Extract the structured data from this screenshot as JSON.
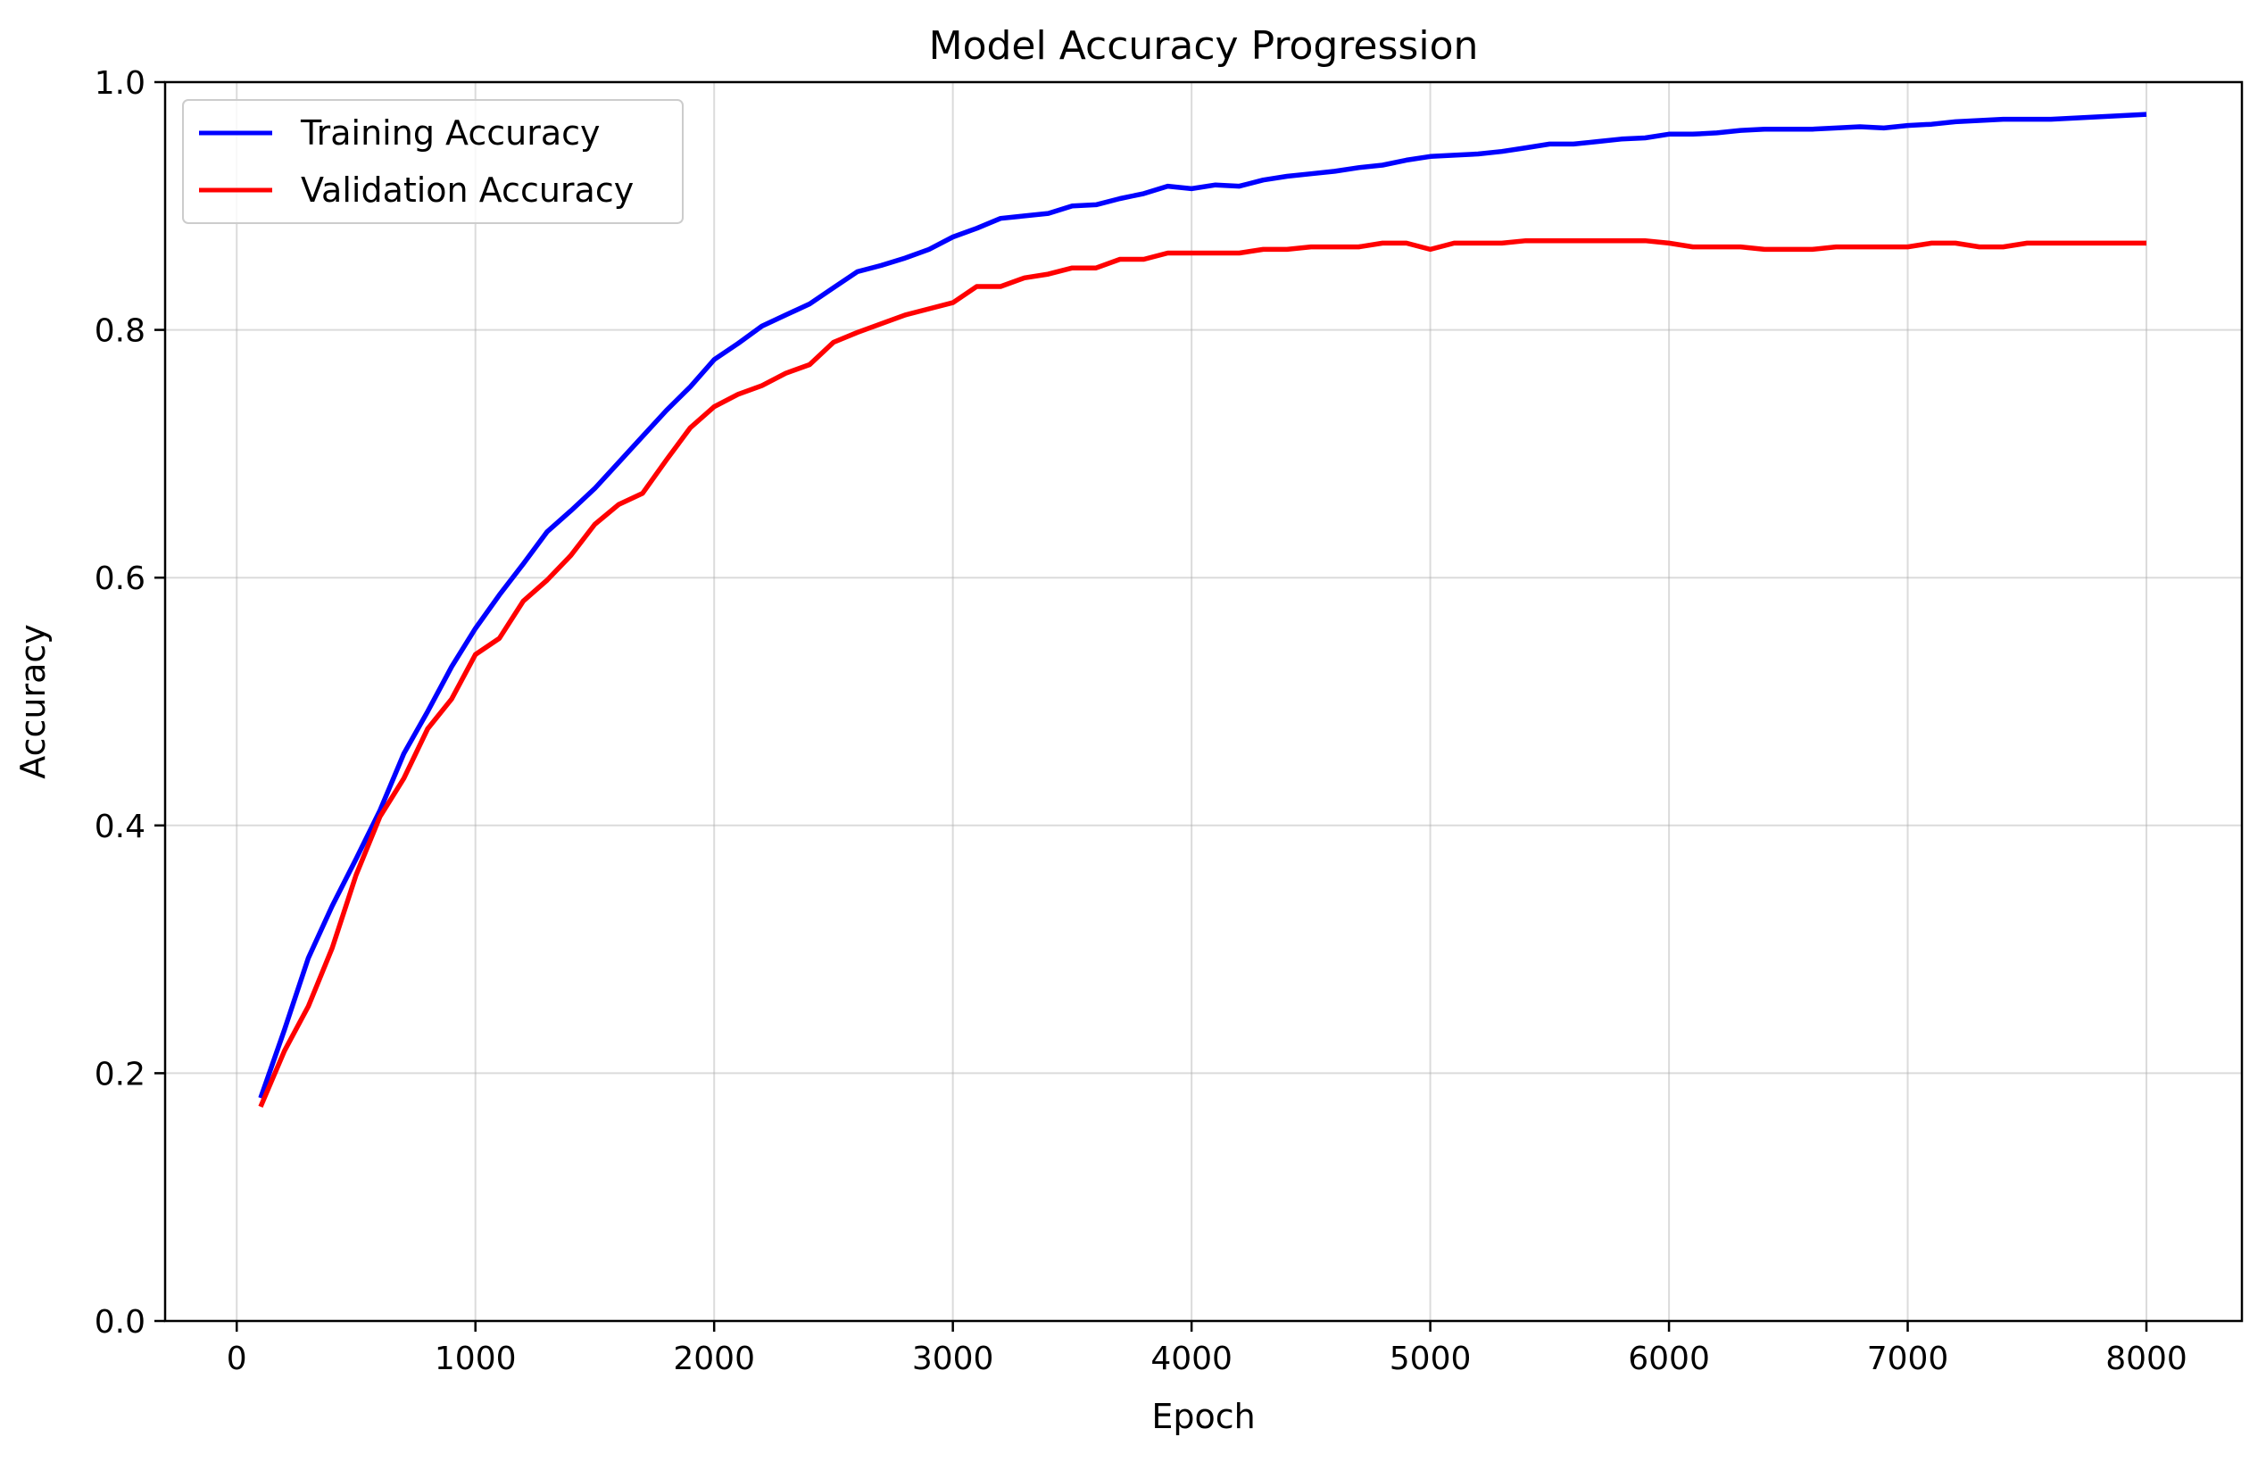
{
  "chart_data": {
    "type": "line",
    "title": "Model Accuracy Progression",
    "xlabel": "Epoch",
    "ylabel": "Accuracy",
    "xlim": [
      -300,
      8400
    ],
    "ylim": [
      0.0,
      1.0
    ],
    "xticks": [
      0,
      1000,
      2000,
      3000,
      4000,
      5000,
      6000,
      7000,
      8000
    ],
    "xtick_labels": [
      "0",
      "1000",
      "2000",
      "3000",
      "4000",
      "5000",
      "6000",
      "7000",
      "8000"
    ],
    "yticks": [
      0.0,
      0.2,
      0.4,
      0.6,
      0.8,
      1.0
    ],
    "ytick_labels": [
      "0.0",
      "0.2",
      "0.4",
      "0.6",
      "0.8",
      "1.0"
    ],
    "grid": true,
    "legend_position": "top-left",
    "x": [
      100,
      200,
      300,
      400,
      500,
      600,
      700,
      800,
      900,
      1000,
      1100,
      1200,
      1300,
      1400,
      1500,
      1600,
      1700,
      1800,
      1900,
      2000,
      2100,
      2200,
      2300,
      2400,
      2500,
      2600,
      2700,
      2800,
      2900,
      3000,
      3100,
      3200,
      3300,
      3400,
      3500,
      3600,
      3700,
      3800,
      3900,
      4000,
      4100,
      4200,
      4300,
      4400,
      4500,
      4600,
      4700,
      4800,
      4900,
      5000,
      5100,
      5200,
      5300,
      5400,
      5500,
      5600,
      5700,
      5800,
      5900,
      6000,
      6100,
      6200,
      6300,
      6400,
      6500,
      6600,
      6700,
      6800,
      6900,
      7000,
      7100,
      7200,
      7300,
      7400,
      7500,
      7600,
      7700,
      7800,
      7900,
      8000
    ],
    "series": [
      {
        "name": "Training Accuracy",
        "color": "#0000ff",
        "values": [
          0.18,
          0.235,
          0.293,
          0.335,
          0.373,
          0.412,
          0.458,
          0.492,
          0.528,
          0.559,
          0.586,
          0.611,
          0.637,
          0.654,
          0.672,
          0.693,
          0.714,
          0.735,
          0.754,
          0.776,
          0.789,
          0.803,
          0.812,
          0.821,
          0.834,
          0.847,
          0.852,
          0.858,
          0.865,
          0.875,
          0.882,
          0.89,
          0.892,
          0.894,
          0.9,
          0.901,
          0.906,
          0.91,
          0.916,
          0.914,
          0.917,
          0.916,
          0.921,
          0.924,
          0.926,
          0.928,
          0.931,
          0.933,
          0.937,
          0.94,
          0.941,
          0.942,
          0.944,
          0.947,
          0.95,
          0.95,
          0.952,
          0.954,
          0.955,
          0.958,
          0.958,
          0.959,
          0.961,
          0.962,
          0.962,
          0.962,
          0.963,
          0.964,
          0.963,
          0.965,
          0.966,
          0.968,
          0.969,
          0.97,
          0.97,
          0.97,
          0.971,
          0.972,
          0.973,
          0.974
        ]
      },
      {
        "name": "Validation Accuracy",
        "color": "#ff0000",
        "values": [
          0.173,
          0.218,
          0.254,
          0.301,
          0.36,
          0.407,
          0.438,
          0.478,
          0.502,
          0.538,
          0.551,
          0.581,
          0.598,
          0.618,
          0.643,
          0.659,
          0.668,
          0.695,
          0.721,
          0.738,
          0.748,
          0.755,
          0.765,
          0.772,
          0.79,
          0.798,
          0.805,
          0.812,
          0.817,
          0.822,
          0.835,
          0.835,
          0.842,
          0.845,
          0.85,
          0.85,
          0.857,
          0.857,
          0.862,
          0.862,
          0.862,
          0.862,
          0.865,
          0.865,
          0.867,
          0.867,
          0.867,
          0.87,
          0.87,
          0.865,
          0.87,
          0.87,
          0.87,
          0.872,
          0.872,
          0.872,
          0.872,
          0.872,
          0.872,
          0.87,
          0.867,
          0.867,
          0.867,
          0.865,
          0.865,
          0.865,
          0.867,
          0.867,
          0.867,
          0.867,
          0.87,
          0.87,
          0.867,
          0.867,
          0.87,
          0.87,
          0.87,
          0.87,
          0.87,
          0.87
        ]
      }
    ]
  }
}
